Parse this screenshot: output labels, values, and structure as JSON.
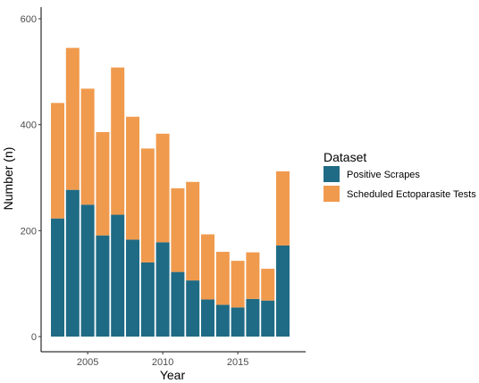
{
  "chart_data": {
    "type": "bar",
    "stacked": true,
    "xlabel": "Year",
    "ylabel": "Number (n)",
    "x": [
      2003,
      2004,
      2005,
      2006,
      2007,
      2008,
      2009,
      2010,
      2011,
      2012,
      2013,
      2014,
      2015,
      2016,
      2017,
      2018
    ],
    "x_ticks": [
      2005,
      2010,
      2015
    ],
    "y_ticks": [
      0,
      200,
      400,
      600
    ],
    "ylim": [
      0,
      600
    ],
    "grid": false,
    "legend": {
      "title": "Dataset",
      "position": "right"
    },
    "series": [
      {
        "name": "Positive Scrapes",
        "color": "#1f6b85",
        "values": [
          223,
          277,
          249,
          191,
          230,
          183,
          140,
          178,
          122,
          106,
          70,
          60,
          55,
          71,
          68,
          172
        ]
      },
      {
        "name": "Scheduled Ectoparasite Tests",
        "color": "#f09a4d",
        "values": [
          218,
          268,
          219,
          195,
          278,
          232,
          215,
          205,
          158,
          186,
          123,
          100,
          88,
          88,
          60,
          140
        ]
      }
    ]
  }
}
